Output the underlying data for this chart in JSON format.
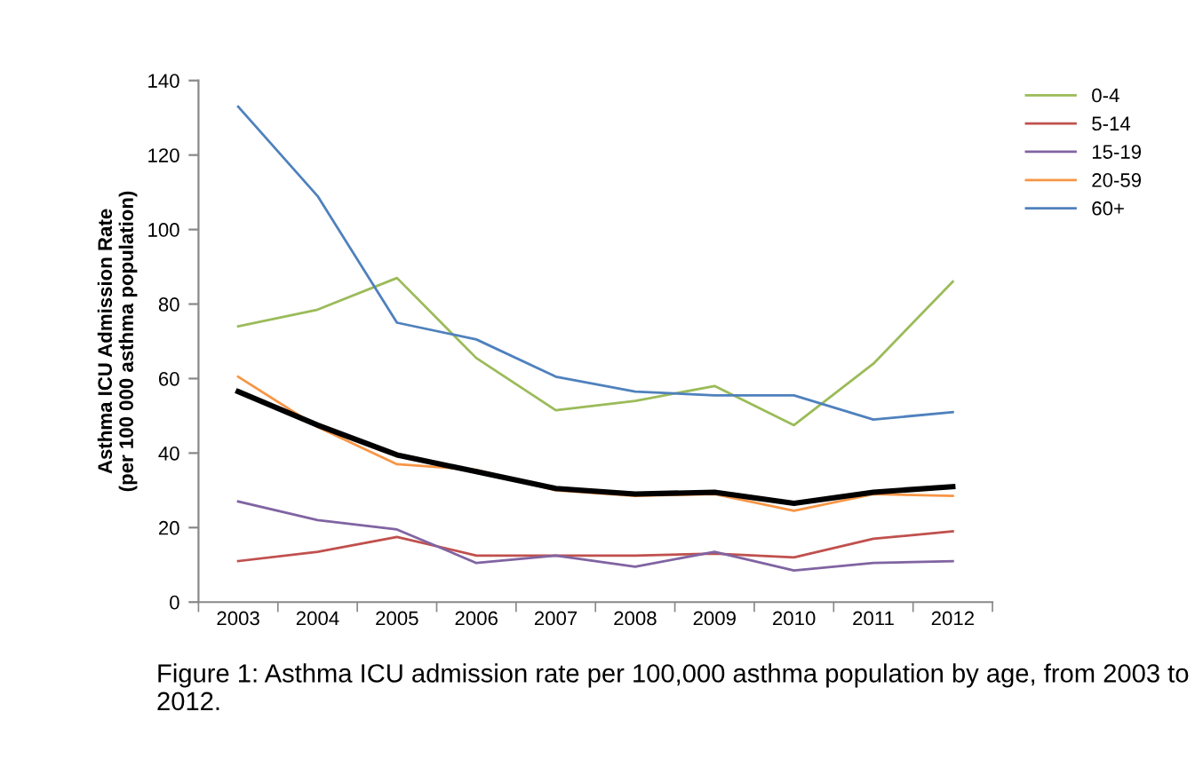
{
  "chart_data": {
    "type": "line",
    "ylabel": "Asthma ICU Admission Rate\n(per 100 000 asthma population)",
    "categories": [
      "2003",
      "2004",
      "2005",
      "2006",
      "2007",
      "2008",
      "2009",
      "2010",
      "2011",
      "2012"
    ],
    "series": [
      {
        "name": "0-4",
        "color": "#9bbb59",
        "values": [
          74,
          78.5,
          87,
          65.5,
          51.5,
          54,
          58,
          47.5,
          64,
          86
        ]
      },
      {
        "name": "5-14",
        "color": "#c0504d",
        "values": [
          11,
          13.5,
          17.5,
          12.5,
          12.5,
          12.5,
          13,
          12,
          17,
          19
        ]
      },
      {
        "name": "15-19",
        "color": "#8064a2",
        "values": [
          27,
          22,
          19.5,
          10.5,
          12.5,
          9.5,
          13.5,
          8.5,
          10.5,
          11
        ]
      },
      {
        "name": "20-59",
        "color": "#f79646",
        "values": [
          60.5,
          47,
          37,
          35.5,
          30,
          28.5,
          29,
          24.5,
          29,
          28.5
        ]
      },
      {
        "name": "60+",
        "color": "#4f81bd",
        "values": [
          133,
          109,
          75,
          70.5,
          60.5,
          56.5,
          55.5,
          55.5,
          49,
          51
        ]
      },
      {
        "color": "#000000",
        "values": [
          56.5,
          47.5,
          39.5,
          35,
          30.5,
          29,
          29.5,
          26.5,
          29.5,
          31
        ]
      }
    ],
    "ylim": [
      0,
      140
    ],
    "yticks": [
      0,
      20,
      40,
      60,
      80,
      100,
      120,
      140
    ],
    "grid": false,
    "legend": "top right",
    "marker": "none",
    "line_style": "solid",
    "annotations": [
      "Figure 1: Asthma ICU admission rate per 100,000 asthma population by age, from 2003 to 2012."
    ]
  }
}
